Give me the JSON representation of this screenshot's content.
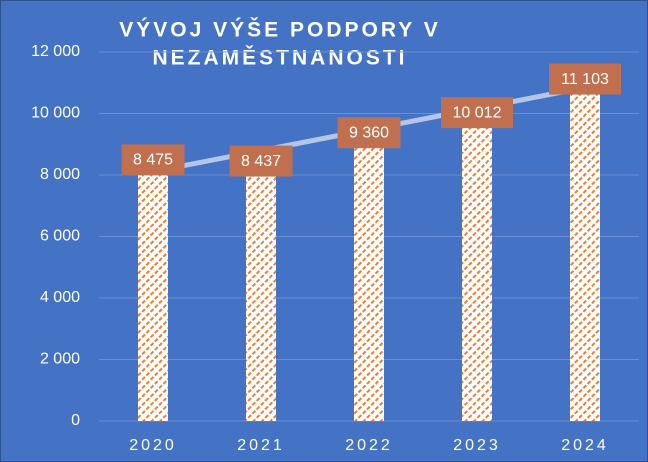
{
  "chart_data": {
    "type": "bar",
    "title": [
      "VÝVOJ VÝŠE PODPORY V",
      "NEZAMĚSTNANOSTI"
    ],
    "categories": [
      "2020",
      "2021",
      "2022",
      "2023",
      "2024"
    ],
    "values": [
      8475,
      8437,
      9360,
      10012,
      11103
    ],
    "value_labels": [
      "8 475",
      "8 437",
      "9 360",
      "10 012",
      "11 103"
    ],
    "color": "#ed7d31",
    "label_color": "#c0704f",
    "background": "#4472c4",
    "ylim": [
      0,
      12000
    ],
    "yticks": [
      0,
      {
        "value": 2000,
        "label": "2 000"
      },
      {
        "value": 4000,
        "label": "4 000"
      },
      {
        "value": 6000,
        "label": "6 000"
      },
      {
        "value": 8000,
        "label": "8 000"
      },
      {
        "value": 10000,
        "label": "10 000"
      },
      {
        "value": 12000,
        "label": "12 000"
      }
    ],
    "grid": true,
    "trendline": "linear"
  }
}
